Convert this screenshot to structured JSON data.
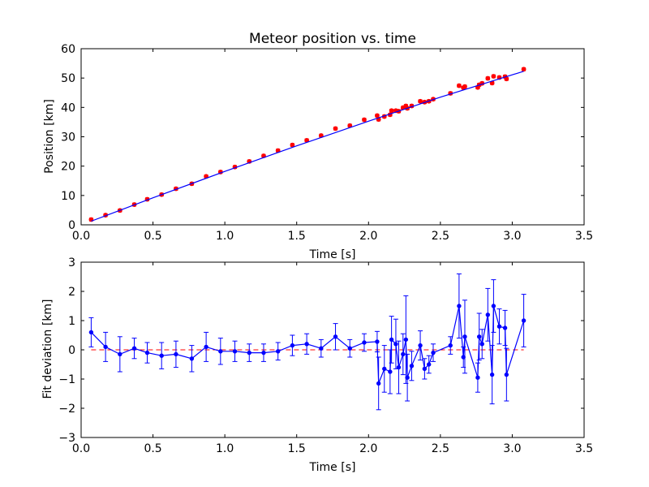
{
  "chart_data": [
    {
      "type": "scatter",
      "title": "Meteor position vs. time",
      "xlabel": "Time [s]",
      "ylabel": "Position [km]",
      "xlim": [
        0.0,
        3.5
      ],
      "ylim": [
        0,
        60
      ],
      "xticks": [
        "0.0",
        "0.5",
        "1.0",
        "1.5",
        "2.0",
        "2.5",
        "3.0",
        "3.5"
      ],
      "yticks": [
        "0",
        "10",
        "20",
        "30",
        "40",
        "50",
        "60"
      ],
      "series": [
        {
          "kind": "errorbar-points",
          "color": "#ff0000",
          "error": 0.5,
          "x": [
            0.07,
            0.17,
            0.27,
            0.37,
            0.46,
            0.56,
            0.66,
            0.77,
            0.87,
            0.97,
            1.07,
            1.17,
            1.27,
            1.37,
            1.47,
            1.57,
            1.67,
            1.77,
            1.87,
            1.97,
            2.06,
            2.07,
            2.11,
            2.15,
            2.16,
            2.19,
            2.21,
            2.24,
            2.26,
            2.27,
            2.3,
            2.36,
            2.39,
            2.42,
            2.45,
            2.57,
            2.63,
            2.66,
            2.67,
            2.76,
            2.77,
            2.79,
            2.83,
            2.86,
            2.87,
            2.91,
            2.95,
            2.96,
            3.08
          ],
          "y": [
            1.8,
            3.3,
            4.9,
            6.9,
            8.7,
            10.3,
            12.3,
            14.0,
            16.5,
            18.0,
            19.7,
            21.6,
            23.5,
            25.3,
            27.2,
            28.8,
            30.4,
            32.8,
            33.8,
            35.8,
            37.2,
            35.9,
            36.9,
            37.5,
            38.9,
            38.9,
            38.7,
            39.9,
            40.5,
            39.7,
            40.5,
            42.1,
            41.8,
            42.1,
            42.8,
            44.8,
            47.4,
            46.7,
            47.1,
            46.8,
            47.7,
            48.2,
            49.9,
            48.3,
            50.6,
            50.2,
            50.5,
            49.7,
            53.0
          ]
        },
        {
          "kind": "fit-line",
          "color": "#0000ff",
          "x": [
            0.07,
            0.5,
            1.0,
            1.5,
            2.0,
            2.5,
            3.08
          ],
          "y": [
            1.25,
            9.2,
            18.2,
            26.9,
            35.3,
            43.5,
            52.3
          ]
        }
      ]
    },
    {
      "type": "line",
      "xlabel": "Time [s]",
      "ylabel": "Fit deviation [km]",
      "xlim": [
        0.0,
        3.5
      ],
      "ylim": [
        -3,
        3
      ],
      "xticks": [
        "0.0",
        "0.5",
        "1.0",
        "1.5",
        "2.0",
        "2.5",
        "3.0",
        "3.5"
      ],
      "yticks": [
        "3",
        "2",
        "1",
        "0",
        "−1",
        "−2",
        "−3"
      ],
      "ytick_values": [
        3,
        2,
        1,
        0,
        -1,
        -2,
        -3
      ],
      "zero_line": {
        "y": 0,
        "color": "#ff0000",
        "style": "dashed"
      },
      "series": [
        {
          "kind": "errorbar-line",
          "color": "#0000ff",
          "x": [
            0.07,
            0.17,
            0.27,
            0.37,
            0.46,
            0.56,
            0.66,
            0.77,
            0.87,
            0.97,
            1.07,
            1.17,
            1.27,
            1.37,
            1.47,
            1.57,
            1.67,
            1.77,
            1.87,
            1.97,
            2.06,
            2.07,
            2.11,
            2.15,
            2.16,
            2.19,
            2.21,
            2.24,
            2.26,
            2.27,
            2.3,
            2.36,
            2.39,
            2.42,
            2.45,
            2.57,
            2.63,
            2.66,
            2.67,
            2.76,
            2.77,
            2.79,
            2.83,
            2.86,
            2.87,
            2.91,
            2.95,
            2.96,
            3.08
          ],
          "y": [
            0.6,
            0.1,
            -0.15,
            0.05,
            -0.1,
            -0.2,
            -0.15,
            -0.3,
            0.1,
            -0.05,
            -0.05,
            -0.1,
            -0.1,
            -0.05,
            0.15,
            0.2,
            0.05,
            0.45,
            0.05,
            0.25,
            0.28,
            -1.15,
            -0.65,
            -0.75,
            0.35,
            0.2,
            -0.6,
            -0.15,
            0.35,
            -0.95,
            -0.55,
            0.15,
            -0.65,
            -0.5,
            -0.1,
            0.15,
            1.5,
            -0.25,
            0.45,
            -0.95,
            0.45,
            0.2,
            1.2,
            -0.85,
            1.5,
            0.8,
            0.75,
            -0.85,
            1.0
          ],
          "yerr": [
            0.5,
            0.5,
            0.6,
            0.35,
            0.35,
            0.45,
            0.45,
            0.45,
            0.5,
            0.45,
            0.35,
            0.3,
            0.3,
            0.3,
            0.35,
            0.35,
            0.3,
            0.45,
            0.3,
            0.3,
            0.35,
            0.9,
            0.8,
            0.75,
            0.8,
            0.85,
            0.9,
            0.7,
            1.5,
            0.8,
            0.5,
            0.5,
            0.35,
            0.3,
            0.3,
            0.3,
            1.1,
            0.35,
            1.25,
            0.5,
            0.8,
            0.5,
            0.9,
            1.0,
            0.9,
            0.6,
            0.6,
            0.9,
            0.9
          ]
        }
      ]
    }
  ]
}
